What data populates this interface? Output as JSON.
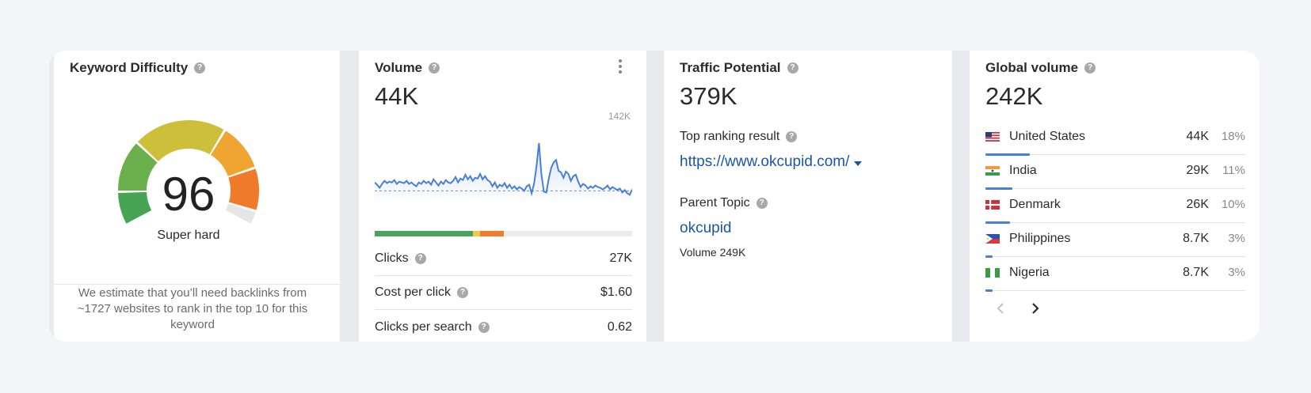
{
  "keyword_difficulty": {
    "title": "Keyword Difficulty",
    "score": "96",
    "level": "Super hard",
    "gauge_fraction": 0.96,
    "note": "We estimate that you’ll need backlinks from ~1727 websites to rank in the top 10 for this keyword"
  },
  "volume": {
    "title": "Volume",
    "value": "44K",
    "chart_max_label": "142K",
    "clicks_split": {
      "organic": 0.38,
      "paid_yellow": 0.03,
      "paid_orange": 0.09
    },
    "metrics": [
      {
        "label": "Clicks",
        "value": "27K"
      },
      {
        "label": "Cost per click",
        "value": "$1.60"
      },
      {
        "label": "Clicks per search",
        "value": "0.62"
      }
    ],
    "chart_data": {
      "type": "area",
      "ylim": [
        0,
        142
      ],
      "values": [
        60,
        57,
        53,
        58,
        62,
        59,
        61,
        60,
        63,
        58,
        61,
        60,
        59,
        62,
        58,
        60,
        57,
        55,
        60,
        58,
        62,
        59,
        61,
        57,
        64,
        60,
        56,
        61,
        58,
        63,
        60,
        59,
        62,
        67,
        60,
        65,
        63,
        70,
        64,
        68,
        62,
        66,
        65,
        71,
        64,
        68,
        63,
        61,
        55,
        60,
        53,
        57,
        55,
        59,
        53,
        57,
        52,
        55,
        51,
        54,
        52,
        49,
        55,
        57,
        46,
        58,
        81,
        111,
        70,
        48,
        47,
        65,
        79,
        86,
        89,
        75,
        73,
        66,
        74,
        71,
        62,
        68,
        70,
        61,
        54,
        58,
        56,
        52,
        55,
        53,
        56,
        54,
        53,
        51,
        53,
        56,
        51,
        54,
        52,
        50,
        52,
        47,
        50,
        46,
        44,
        51
      ],
      "baseline": 49
    }
  },
  "traffic_potential": {
    "title": "Traffic Potential",
    "value": "379K",
    "top_result_label": "Top ranking result",
    "top_result_url": "https://www.okcupid.com/",
    "parent_topic_label": "Parent Topic",
    "parent_topic": "okcupid",
    "parent_volume": "Volume 249K"
  },
  "global_volume": {
    "title": "Global volume",
    "value": "242K",
    "countries": [
      {
        "name": "United States",
        "value": "44K",
        "pct": "18%",
        "share": 0.18,
        "flag": "us-flag-icon"
      },
      {
        "name": "India",
        "value": "29K",
        "pct": "11%",
        "share": 0.11,
        "flag": "india-flag-icon"
      },
      {
        "name": "Denmark",
        "value": "26K",
        "pct": "10%",
        "share": 0.1,
        "flag": "denmark-flag-icon"
      },
      {
        "name": "Philippines",
        "value": "8.7K",
        "pct": "3%",
        "share": 0.03,
        "flag": "philippines-flag-icon"
      },
      {
        "name": "Nigeria",
        "value": "8.7K",
        "pct": "3%",
        "share": 0.03,
        "flag": "nigeria-flag-icon"
      }
    ]
  },
  "help_icon_glyph": "?",
  "colors": {
    "link": "#1a56a8",
    "share_bar": "#4a7fd6",
    "organic": "#4aa35a",
    "paid_yellow": "#f2c94c",
    "paid_orange": "#f07c2f"
  }
}
